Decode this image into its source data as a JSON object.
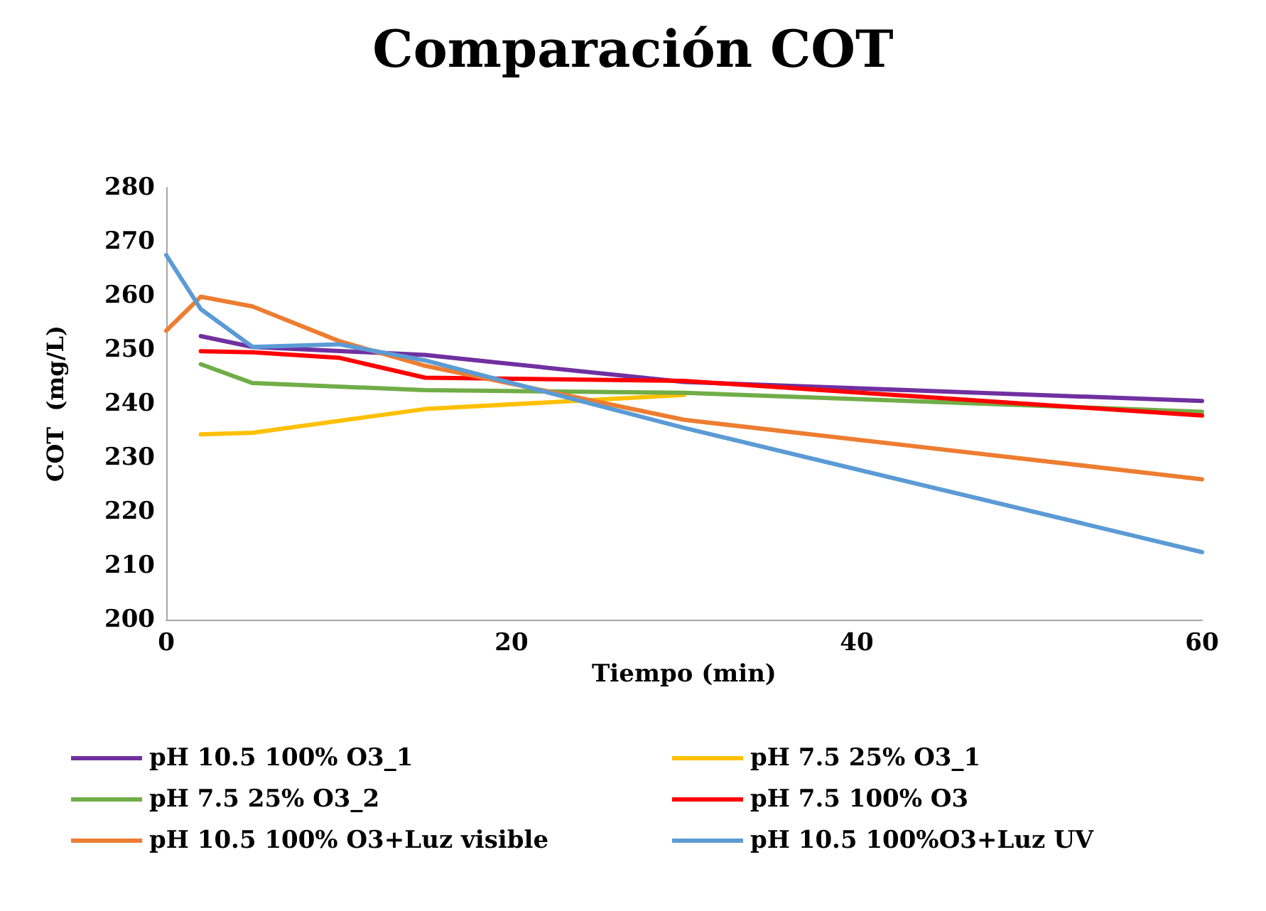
{
  "chart_data": {
    "type": "line",
    "title": "Comparación COT",
    "xlabel": "Tiempo (min)",
    "ylabel": "COT  (mg/L)",
    "xlim": [
      0,
      60
    ],
    "xticks": [
      0,
      20,
      40,
      60
    ],
    "ylim": [
      200,
      280
    ],
    "yticks": [
      200,
      210,
      220,
      230,
      240,
      250,
      260,
      270,
      280
    ],
    "grid": false,
    "legend": "bottom",
    "marker": "none",
    "line_style": "solid",
    "series": [
      {
        "name": "pH 10.5 100% O3_1",
        "color": "#7030a0",
        "x": [
          2,
          5,
          15,
          30,
          60
        ],
        "values": [
          252.5,
          250.5,
          249,
          244,
          240.5
        ]
      },
      {
        "name": "pH 7.5 25% O3_1",
        "color": "#ffc000",
        "x": [
          2,
          5,
          15,
          30
        ],
        "values": [
          234.3,
          234.6,
          239,
          241.6
        ]
      },
      {
        "name": "pH 7.5 25% O3_2",
        "color": "#70ad47",
        "x": [
          2,
          5,
          15,
          30,
          60
        ],
        "values": [
          247.3,
          243.8,
          242.5,
          242,
          238.5
        ]
      },
      {
        "name": "pH 7.5 100% O3",
        "color": "#ff0000",
        "x": [
          2,
          5,
          10,
          15,
          30,
          60
        ],
        "values": [
          249.7,
          249.5,
          248.5,
          244.8,
          244.2,
          237.8
        ]
      },
      {
        "name": "pH 10.5 100% O3+Luz visible",
        "color": "#ed7d31",
        "x": [
          0,
          2,
          5,
          10,
          15,
          30,
          60
        ],
        "values": [
          253.5,
          259.8,
          258,
          251.6,
          247,
          237,
          226
        ]
      },
      {
        "name": "pH 10.5 100%O3+Luz UV",
        "color": "#5b9bd5",
        "x": [
          0,
          2,
          5,
          10,
          15,
          30,
          60
        ],
        "values": [
          267.5,
          257.5,
          250.5,
          251,
          248,
          235.5,
          212.5
        ]
      }
    ]
  }
}
